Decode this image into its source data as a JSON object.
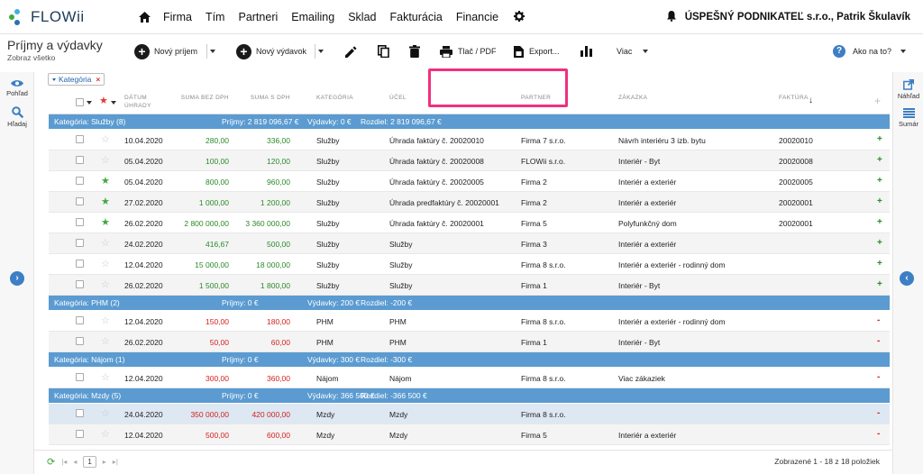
{
  "app": {
    "name": "FLOWii"
  },
  "nav": {
    "items": [
      "Firma",
      "Tím",
      "Partneri",
      "Emailing",
      "Sklad",
      "Fakturácia",
      "Financie"
    ],
    "company": "ÚSPEŠNÝ PODNIKATEĽ s.r.o., Patrik Škulavík"
  },
  "page": {
    "title": "Príjmy a výdavky",
    "subtitle": "Zobraz všetko"
  },
  "toolbar": {
    "new_income": "Nový príjem",
    "new_expense": "Nový výdavok",
    "print": "Tlač / PDF",
    "export": "Export...",
    "more": "Viac",
    "help": "Ako na to?"
  },
  "left_rail": {
    "view": "Pohľad",
    "search": "Hľadaj"
  },
  "right_rail": {
    "preview": "Náhľad",
    "summary": "Sumár"
  },
  "filter_chip": {
    "label": "Kategória"
  },
  "columns": {
    "date": "DÁTUM ÚHRADY",
    "sum_no_vat": "SUMA BEZ DPH",
    "sum_vat": "SUMA S DPH",
    "category": "KATEGÓRIA",
    "purpose": "ÚČEL",
    "partner": "PARTNER",
    "order": "ZÁKAZKA",
    "invoice": "FAKTÚRA"
  },
  "groups": [
    {
      "title": "Kategória: Služby (8)",
      "income": "Príjmy: 2 819 096,67 €",
      "expenses": "Výdavky: 0 €",
      "diff": "Rozdiel: 2 819 096,67 €",
      "rows": [
        {
          "starred": false,
          "date": "10.04.2020",
          "no_vat": "280,00",
          "vat": "336,00",
          "category": "Služby",
          "purpose": "Úhrada faktúry č. 20020010",
          "partner": "Firma 7 s.r.o.",
          "order": "Návrh interiéru 3 izb. bytu",
          "invoice": "20020010",
          "sign": "+"
        },
        {
          "starred": false,
          "date": "05.04.2020",
          "no_vat": "100,00",
          "vat": "120,00",
          "category": "Služby",
          "purpose": "Úhrada faktúry č. 20020008",
          "partner": "FLOWii s.r.o.",
          "order": "Interiér - Byt",
          "invoice": "20020008",
          "sign": "+"
        },
        {
          "starred": true,
          "date": "05.04.2020",
          "no_vat": "800,00",
          "vat": "960,00",
          "category": "Služby",
          "purpose": "Úhrada faktúry č. 20020005",
          "partner": "Firma 2",
          "order": "Interiér a exteriér",
          "invoice": "20020005",
          "sign": "+"
        },
        {
          "starred": true,
          "date": "27.02.2020",
          "no_vat": "1 000,00",
          "vat": "1 200,00",
          "category": "Služby",
          "purpose": "Úhrada predfaktúry č. 20020001",
          "partner": "Firma 2",
          "order": "Interiér a exteriér",
          "invoice": "20020001",
          "sign": "+"
        },
        {
          "starred": true,
          "date": "26.02.2020",
          "no_vat": "2 800 000,00",
          "vat": "3 360 000,00",
          "category": "Služby",
          "purpose": "Úhrada faktúry č. 20020001",
          "partner": "Firma 5",
          "order": "Polyfunkčný dom",
          "invoice": "20020001",
          "sign": "+"
        },
        {
          "starred": false,
          "date": "24.02.2020",
          "no_vat": "416,67",
          "vat": "500,00",
          "category": "Služby",
          "purpose": "Služby",
          "partner": "Firma 3",
          "order": "Interiér a exteriér",
          "invoice": "",
          "sign": "+"
        },
        {
          "starred": false,
          "date": "12.04.2020",
          "no_vat": "15 000,00",
          "vat": "18 000,00",
          "category": "Služby",
          "purpose": "Služby",
          "partner": "Firma 8 s.r.o.",
          "order": "Interiér a exteriér - rodinný dom",
          "invoice": "",
          "sign": "+"
        },
        {
          "starred": false,
          "date": "26.02.2020",
          "no_vat": "1 500,00",
          "vat": "1 800,00",
          "category": "Služby",
          "purpose": "Služby",
          "partner": "Firma 1",
          "order": "Interiér - Byt",
          "invoice": "",
          "sign": "+"
        }
      ]
    },
    {
      "title": "Kategória: PHM (2)",
      "income": "Príjmy: 0 €",
      "expenses": "Výdavky: 200 €",
      "diff": "Rozdiel: -200 €",
      "rows": [
        {
          "starred": false,
          "date": "12.04.2020",
          "no_vat": "150,00",
          "vat": "180,00",
          "category": "PHM",
          "purpose": "PHM",
          "partner": "Firma 8 s.r.o.",
          "order": "Interiér a exteriér - rodinný dom",
          "invoice": "",
          "sign": "-"
        },
        {
          "starred": false,
          "date": "26.02.2020",
          "no_vat": "50,00",
          "vat": "60,00",
          "category": "PHM",
          "purpose": "PHM",
          "partner": "Firma 1",
          "order": "Interiér - Byt",
          "invoice": "",
          "sign": "-"
        }
      ]
    },
    {
      "title": "Kategória: Nájom (1)",
      "income": "Príjmy: 0 €",
      "expenses": "Výdavky: 300 €",
      "diff": "Rozdiel: -300 €",
      "rows": [
        {
          "starred": false,
          "date": "12.04.2020",
          "no_vat": "300,00",
          "vat": "360,00",
          "category": "Nájom",
          "purpose": "Nájom",
          "partner": "Firma 8 s.r.o.",
          "order": "Viac zákaziek",
          "invoice": "",
          "sign": "-"
        }
      ]
    },
    {
      "title": "Kategória: Mzdy (5)",
      "income": "Príjmy: 0 €",
      "expenses": "Výdavky: 366 500 €",
      "diff": "Rozdiel: -366 500 €",
      "rows": [
        {
          "starred": false,
          "date": "24.04.2020",
          "no_vat": "350 000,00",
          "vat": "420 000,00",
          "category": "Mzdy",
          "purpose": "Mzdy",
          "partner": "Firma 8 s.r.o.",
          "order": "",
          "invoice": "",
          "sign": "-"
        },
        {
          "starred": false,
          "date": "12.04.2020",
          "no_vat": "500,00",
          "vat": "600,00",
          "category": "Mzdy",
          "purpose": "Mzdy",
          "partner": "Firma 5",
          "order": "Interiér a exteriér",
          "invoice": "",
          "sign": "-"
        }
      ]
    }
  ],
  "footer": {
    "page": "1",
    "info": "Zobrazené 1 - 18 z 18 položiek"
  },
  "colors": {
    "accent": "#3d7fc4",
    "group_bar": "#5b9bd1",
    "highlight": "#f0307f",
    "positive": "#2a8a2a",
    "negative": "#d42020"
  }
}
